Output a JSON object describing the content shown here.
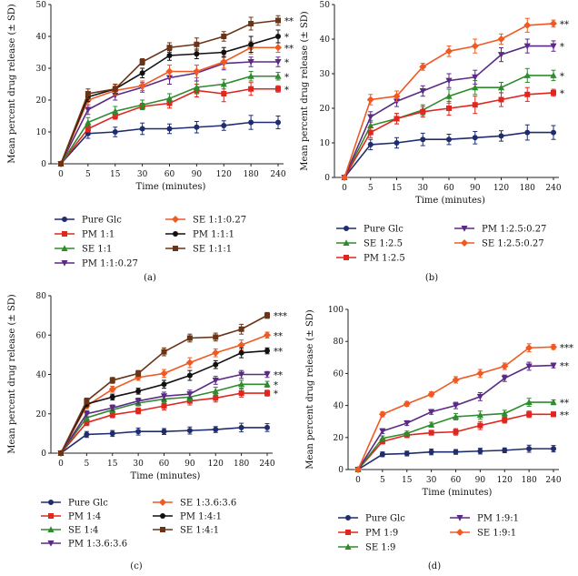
{
  "colors": {
    "pure_glc": "#1f2d6e",
    "pm": "#e0261f",
    "se_green": "#2e8b2e",
    "purple": "#5b2a86",
    "orange": "#f05a22",
    "black": "#111111",
    "brown": "#6b3416"
  },
  "chart_data": [
    {
      "panel_label": "(a)",
      "type": "line",
      "title": "",
      "xlabel": "Time (minutes)",
      "ylabel": "Mean percent drug release (± SD)",
      "categories": [
        "0",
        "5",
        "15",
        "30",
        "60",
        "90",
        "120",
        "180",
        "240"
      ],
      "ylim": [
        0,
        50
      ],
      "yticks": [
        0,
        10,
        20,
        30,
        40,
        50
      ],
      "grid": false,
      "legend_columns": 2,
      "series": [
        {
          "name": "Pure Glc",
          "color": "pure_glc",
          "marker": "circle",
          "values": [
            0,
            9.5,
            10,
            11,
            11,
            11.5,
            12,
            13,
            13
          ],
          "err": [
            0,
            1.5,
            1.5,
            1.8,
            1.5,
            1.8,
            1.5,
            2.2,
            2
          ],
          "sig": ""
        },
        {
          "name": "PM 1:1",
          "color": "pm",
          "marker": "square",
          "values": [
            0,
            11,
            15,
            18,
            19,
            23,
            22,
            23.5,
            23.5
          ],
          "err": [
            0,
            1,
            1,
            1,
            1.5,
            2,
            2.5,
            2,
            1
          ],
          "sig": "*"
        },
        {
          "name": "SE 1:1",
          "color": "se_green",
          "marker": "triangle",
          "values": [
            0,
            13,
            16.5,
            18.5,
            20.5,
            24,
            25,
            27.5,
            27.5
          ],
          "err": [
            0,
            1.5,
            1.5,
            1.5,
            1.5,
            2,
            1.5,
            1.5,
            1.2
          ],
          "sig": "*"
        },
        {
          "name": "PM 1:1:0.27",
          "color": "purple",
          "marker": "tri_down",
          "values": [
            0,
            17,
            21.5,
            24,
            27,
            28.5,
            31.5,
            32,
            32
          ],
          "err": [
            0,
            1.5,
            1.5,
            1.5,
            2,
            2.5,
            2,
            1.5,
            1.5
          ],
          "sig": "*"
        },
        {
          "name": "SE 1:1:0.27",
          "color": "orange",
          "marker": "diamond",
          "values": [
            0,
            20,
            23,
            24.5,
            29,
            29,
            32,
            36.5,
            36.5
          ],
          "err": [
            0,
            1.5,
            1.5,
            1.5,
            2,
            2,
            2,
            2,
            1.5
          ],
          "sig": "**"
        },
        {
          "name": "PM 1:1:1",
          "color": "black",
          "marker": "circle",
          "values": [
            0,
            21,
            23.5,
            28.5,
            34,
            34.5,
            35,
            37.5,
            40
          ],
          "err": [
            0,
            1.5,
            1.5,
            1.5,
            1.5,
            1.5,
            1.5,
            2.5,
            2
          ],
          "sig": "*"
        },
        {
          "name": "SE 1:1:1",
          "color": "brown",
          "marker": "square",
          "values": [
            0,
            22,
            23.5,
            32,
            36.5,
            37.5,
            40,
            44,
            45
          ],
          "err": [
            0,
            1.5,
            1.5,
            1,
            1.5,
            2,
            1.5,
            2,
            1.5
          ],
          "sig": "**"
        }
      ]
    },
    {
      "panel_label": "(b)",
      "type": "line",
      "title": "",
      "xlabel": "Time (minutes)",
      "ylabel": "Mean percent drug release (± SD)",
      "categories": [
        "0",
        "5",
        "15",
        "30",
        "60",
        "90",
        "120",
        "180",
        "240"
      ],
      "ylim": [
        0,
        50
      ],
      "yticks": [
        0,
        10,
        20,
        30,
        40,
        50
      ],
      "grid": false,
      "legend_columns": 2,
      "series": [
        {
          "name": "Pure Glc",
          "color": "pure_glc",
          "marker": "circle",
          "values": [
            0,
            9.5,
            10,
            11,
            11,
            11.5,
            12,
            13,
            13
          ],
          "err": [
            0,
            1.5,
            1.5,
            1.8,
            1.5,
            1.8,
            1.5,
            2.2,
            2
          ],
          "sig": ""
        },
        {
          "name": "SE 1:2.5",
          "color": "se_green",
          "marker": "triangle",
          "values": [
            0,
            15,
            17,
            19.5,
            23.5,
            26,
            26,
            29.5,
            29.5
          ],
          "err": [
            0,
            1.5,
            1.5,
            1.5,
            2,
            2,
            1.5,
            2,
            1.5
          ],
          "sig": "*"
        },
        {
          "name": "PM 1:2.5",
          "color": "pm",
          "marker": "square",
          "values": [
            0,
            13,
            17,
            19,
            20,
            21,
            22.5,
            24,
            24.5
          ],
          "err": [
            0,
            1.5,
            1.5,
            1.5,
            2,
            2.5,
            2,
            2,
            1
          ],
          "sig": "*"
        },
        {
          "name": "PM 1:2.5:0.27",
          "color": "purple",
          "marker": "tri_down",
          "values": [
            0,
            17.5,
            22,
            25,
            28,
            29,
            35.5,
            38,
            38
          ],
          "err": [
            0,
            1.5,
            1.5,
            1.5,
            2,
            2,
            2,
            2,
            1.5
          ],
          "sig": "*"
        },
        {
          "name": "SE 1:2.5:0.27",
          "color": "orange",
          "marker": "diamond",
          "values": [
            0,
            22.5,
            23.5,
            32,
            36.5,
            38,
            40,
            44,
            44.5
          ],
          "err": [
            0,
            1.5,
            1.5,
            1,
            1.5,
            2,
            1.5,
            2,
            1
          ],
          "sig": "**"
        }
      ]
    },
    {
      "panel_label": "(c)",
      "type": "line",
      "title": "",
      "xlabel": "Time (minutes)",
      "ylabel": "Mean percent drug release (± SD)",
      "categories": [
        "0",
        "5",
        "15",
        "30",
        "60",
        "90",
        "120",
        "180",
        "240"
      ],
      "ylim": [
        0,
        80
      ],
      "yticks": [
        0,
        20,
        40,
        60,
        80
      ],
      "grid": false,
      "legend_columns": 2,
      "series": [
        {
          "name": "Pure Glc",
          "color": "pure_glc",
          "marker": "circle",
          "values": [
            0,
            9.5,
            10,
            11,
            11,
            11.5,
            12,
            13,
            13
          ],
          "err": [
            0,
            1.5,
            1.5,
            1.8,
            1.5,
            1.8,
            1.5,
            2.2,
            2
          ],
          "sig": ""
        },
        {
          "name": "PM 1:4",
          "color": "pm",
          "marker": "square",
          "values": [
            0,
            15.5,
            19.5,
            21.5,
            24,
            26.5,
            28,
            30.5,
            30.5
          ],
          "err": [
            0,
            1.5,
            1.5,
            1.5,
            2,
            2,
            2,
            2,
            1.5
          ],
          "sig": "*"
        },
        {
          "name": "SE 1:4",
          "color": "se_green",
          "marker": "triangle",
          "values": [
            0,
            18,
            22,
            25.5,
            27.5,
            28.5,
            31.5,
            35,
            35
          ],
          "err": [
            0,
            1.5,
            1.5,
            1.5,
            2,
            2,
            2,
            2,
            1.5
          ],
          "sig": "*"
        },
        {
          "name": "PM 1:3.6:3.6",
          "color": "purple",
          "marker": "tri_down",
          "values": [
            0,
            20,
            23,
            26.5,
            29,
            30,
            37,
            40,
            40
          ],
          "err": [
            0,
            1.5,
            1.5,
            1.5,
            2,
            2,
            2,
            2,
            1.5
          ],
          "sig": "**"
        },
        {
          "name": "SE 1:3.6:3.6",
          "color": "orange",
          "marker": "diamond",
          "values": [
            0,
            24,
            32.5,
            38.5,
            40.5,
            46,
            51,
            55,
            60
          ],
          "err": [
            0,
            1.5,
            1.5,
            1.5,
            2,
            2.5,
            2,
            2.5,
            1.5
          ],
          "sig": "**"
        },
        {
          "name": "PM 1:4:1",
          "color": "black",
          "marker": "circle",
          "values": [
            0,
            25,
            28.5,
            31.5,
            35,
            39.5,
            45,
            51,
            52
          ],
          "err": [
            0,
            1.5,
            1.5,
            1.5,
            2,
            2.5,
            2,
            2.5,
            1.5
          ],
          "sig": "**"
        },
        {
          "name": "SE 1:4:1",
          "color": "brown",
          "marker": "square",
          "values": [
            0,
            26.5,
            37,
            40.5,
            51.5,
            58.5,
            59,
            63,
            70
          ],
          "err": [
            0,
            1.5,
            1.5,
            1.5,
            2,
            2,
            2,
            2.5,
            1.5
          ],
          "sig": "***"
        }
      ]
    },
    {
      "panel_label": "(d)",
      "type": "line",
      "title": "",
      "xlabel": "Time (minutes)",
      "ylabel": "Mean percent drug release (± SD)",
      "categories": [
        "0",
        "5",
        "15",
        "30",
        "60",
        "90",
        "120",
        "180",
        "240"
      ],
      "ylim": [
        0,
        100
      ],
      "yticks": [
        0,
        20,
        40,
        60,
        80,
        100
      ],
      "grid": false,
      "legend_columns": 2,
      "series": [
        {
          "name": "Pure Glc",
          "color": "pure_glc",
          "marker": "circle",
          "values": [
            0,
            9.5,
            10,
            11,
            11,
            11.5,
            12,
            13,
            13
          ],
          "err": [
            0,
            1.5,
            1.5,
            1.8,
            1.5,
            1.8,
            1.5,
            2.2,
            2
          ],
          "sig": ""
        },
        {
          "name": "PM 1:9",
          "color": "pm",
          "marker": "square",
          "values": [
            0,
            17.5,
            21.5,
            23,
            23.5,
            27.5,
            31,
            34.5,
            34.5
          ],
          "err": [
            0,
            1.5,
            1.5,
            1.5,
            2,
            2.5,
            2,
            2,
            1.5
          ],
          "sig": "**"
        },
        {
          "name": "SE 1:9",
          "color": "se_green",
          "marker": "triangle",
          "values": [
            0,
            19.5,
            22.5,
            28,
            33,
            34,
            35,
            42,
            42
          ],
          "err": [
            0,
            1.5,
            1.5,
            1.5,
            2,
            2.5,
            2,
            2.5,
            1.5
          ],
          "sig": "**"
        },
        {
          "name": "PM 1:9:1",
          "color": "purple",
          "marker": "tri_down",
          "values": [
            0,
            24,
            29,
            36,
            40,
            45.5,
            57,
            64.5,
            65
          ],
          "err": [
            0,
            1.5,
            1.5,
            1.5,
            2,
            2.5,
            2,
            2.5,
            1.5
          ],
          "sig": "**"
        },
        {
          "name": "SE 1:9:1",
          "color": "orange",
          "marker": "diamond",
          "values": [
            0,
            34.5,
            41,
            47,
            56,
            60,
            64.5,
            76,
            76.5
          ],
          "err": [
            0,
            1.5,
            1.5,
            1.5,
            2,
            2.5,
            2,
            2.5,
            1.5
          ],
          "sig": "***"
        }
      ]
    }
  ]
}
